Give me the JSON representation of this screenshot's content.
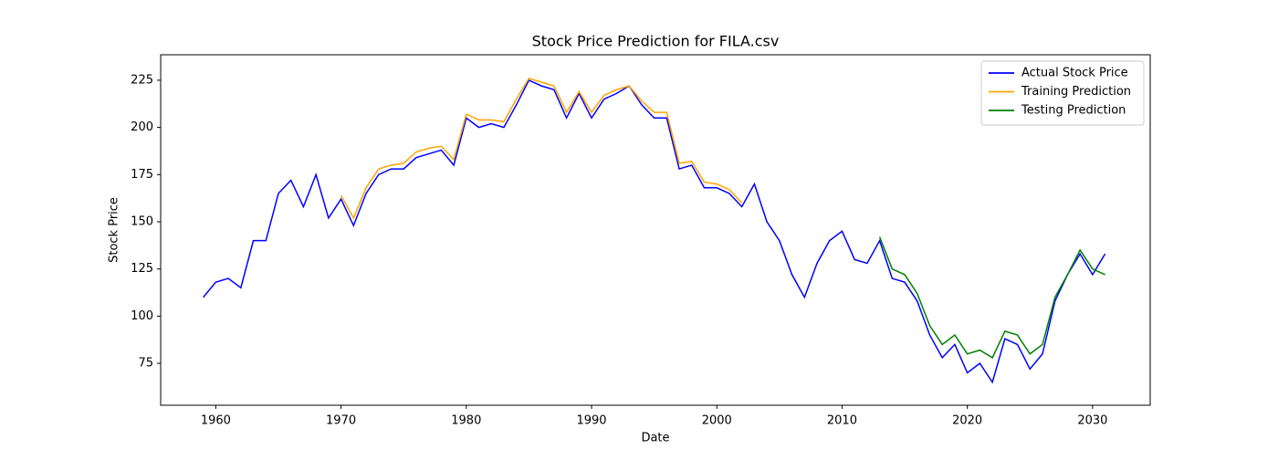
{
  "chart_data": {
    "type": "line",
    "title": "Stock Price Prediction for FILA.csv",
    "x_label": "Date",
    "y_label": "Stock Price",
    "x": [
      1959,
      1960,
      1961,
      1962,
      1963,
      1964,
      1965,
      1966,
      1967,
      1968,
      1969,
      1970,
      1971,
      1972,
      1973,
      1974,
      1975,
      1976,
      1977,
      1978,
      1979,
      1980,
      1981,
      1982,
      1983,
      1984,
      1985,
      1986,
      1987,
      1988,
      1989,
      1990,
      1991,
      1992,
      1993,
      1994,
      1995,
      1996,
      1997,
      1998,
      1999,
      2000,
      2001,
      2002,
      2003,
      2004,
      2005,
      2006,
      2007,
      2008,
      2009,
      2010,
      2011,
      2012,
      2013,
      2014,
      2015,
      2016,
      2017,
      2018,
      2019,
      2020,
      2021,
      2022,
      2023,
      2024,
      2025,
      2026,
      2027,
      2028,
      2029,
      2030,
      2031
    ],
    "series": [
      {
        "name": "Actual Stock Price",
        "color": "#0000ff",
        "values": [
          110,
          118,
          120,
          115,
          140,
          140,
          165,
          172,
          158,
          175,
          152,
          162,
          148,
          165,
          175,
          178,
          178,
          184,
          186,
          188,
          180,
          205,
          200,
          202,
          200,
          212,
          225,
          222,
          220,
          205,
          218,
          205,
          215,
          218,
          222,
          212,
          205,
          205,
          178,
          180,
          168,
          168,
          165,
          158,
          170,
          150,
          140,
          122,
          110,
          128,
          140,
          145,
          130,
          128,
          140,
          120,
          118,
          108,
          90,
          78,
          85,
          70,
          75,
          65,
          88,
          85,
          72,
          80,
          108,
          122,
          133,
          122,
          133
        ]
      },
      {
        "name": "Training Prediction",
        "color": "#ffa500",
        "values": [
          null,
          null,
          null,
          null,
          null,
          null,
          null,
          null,
          null,
          null,
          null,
          164,
          152,
          168,
          178,
          180,
          181,
          187,
          189,
          190,
          183,
          207,
          204,
          204,
          203,
          215,
          226,
          224,
          222,
          208,
          219,
          208,
          217,
          220,
          222,
          214,
          208,
          208,
          181,
          182,
          171,
          170,
          167,
          160,
          null,
          null,
          null,
          null,
          null,
          null,
          null,
          null,
          null,
          null,
          null,
          null,
          null,
          null,
          null,
          null,
          null,
          null,
          null,
          null,
          null,
          null,
          null,
          null,
          null,
          null,
          null,
          null,
          null
        ]
      },
      {
        "name": "Testing Prediction",
        "color": "#008000",
        "values": [
          null,
          null,
          null,
          null,
          null,
          null,
          null,
          null,
          null,
          null,
          null,
          null,
          null,
          null,
          null,
          null,
          null,
          null,
          null,
          null,
          null,
          null,
          null,
          null,
          null,
          null,
          null,
          null,
          null,
          null,
          null,
          null,
          null,
          null,
          null,
          null,
          null,
          null,
          null,
          null,
          null,
          null,
          null,
          null,
          null,
          null,
          null,
          null,
          null,
          null,
          null,
          null,
          null,
          null,
          142,
          125,
          122,
          112,
          95,
          85,
          90,
          80,
          82,
          78,
          92,
          90,
          80,
          85,
          110,
          122,
          135,
          125,
          122
        ]
      }
    ],
    "xlim": [
      1955.6,
      2034.6
    ],
    "xticks": [
      1960,
      1970,
      1980,
      1990,
      2000,
      2010,
      2020,
      2030
    ],
    "ylim": [
      52.8,
      238.5
    ],
    "yticks": [
      75,
      100,
      125,
      150,
      175,
      200,
      225
    ],
    "grid": false,
    "legend": "upper right"
  }
}
